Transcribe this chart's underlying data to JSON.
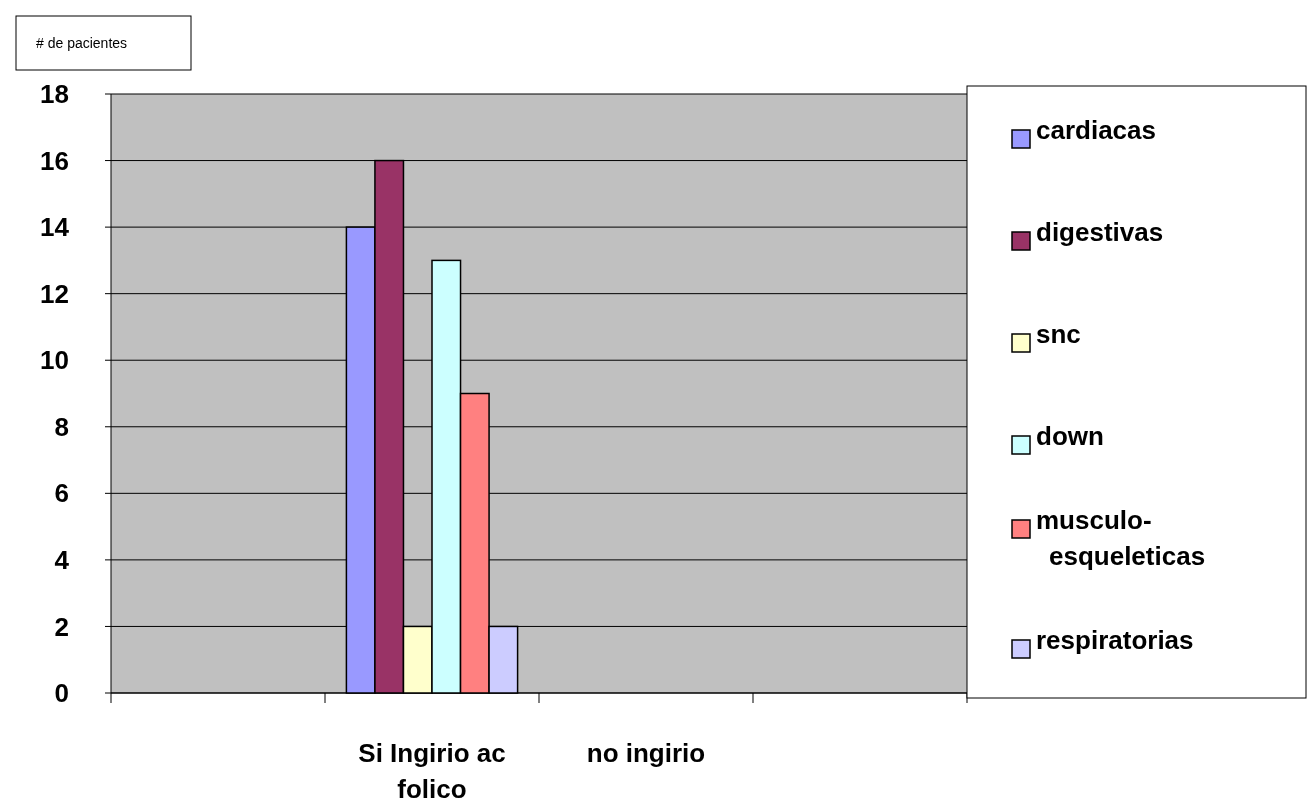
{
  "chart_data": {
    "type": "bar",
    "ylabel": "# de pacientes",
    "categories": [
      null,
      "Si Ingirio ac folico",
      "no ingirio",
      null
    ],
    "series": [
      {
        "name": "cardiacas",
        "color": "#9999ff",
        "values": [
          null,
          14,
          null,
          null
        ]
      },
      {
        "name": "digestivas",
        "color": "#993366",
        "values": [
          null,
          16,
          null,
          null
        ]
      },
      {
        "name": "snc",
        "color": "#ffffcc",
        "values": [
          null,
          2,
          null,
          null
        ]
      },
      {
        "name": "down",
        "color": "#ccffff",
        "values": [
          null,
          13,
          null,
          null
        ]
      },
      {
        "name": "musculo-esqueleticas",
        "color": "#ff8080",
        "values": [
          null,
          9,
          null,
          null
        ]
      },
      {
        "name": "respiratorias",
        "color": "#ccccff",
        "values": [
          null,
          2,
          null,
          null
        ]
      }
    ],
    "ylim": [
      0,
      18
    ],
    "yticks": [
      0,
      2,
      4,
      6,
      8,
      10,
      12,
      14,
      16,
      18
    ],
    "grid": "y",
    "legend": "right"
  }
}
